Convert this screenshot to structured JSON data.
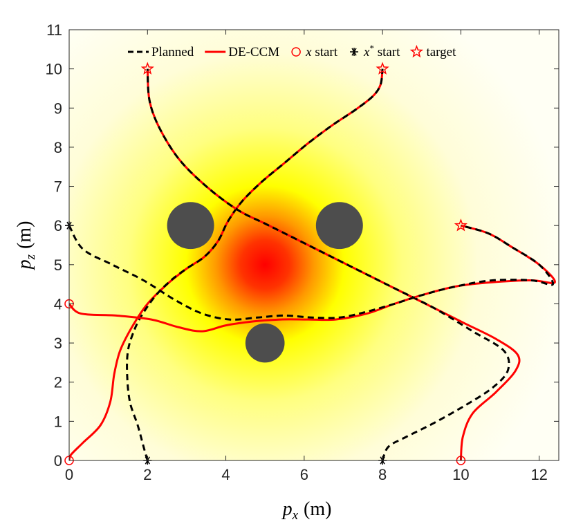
{
  "chart_data": {
    "type": "line",
    "xlabel": "p_x (m)",
    "ylabel": "p_z (m)",
    "xlabel_parts": {
      "var": "p",
      "sub": "x",
      "unit": "(m)"
    },
    "ylabel_parts": {
      "var": "p",
      "sub": "z",
      "unit": "(m)"
    },
    "xlim": [
      0,
      12.5
    ],
    "ylim": [
      0,
      11
    ],
    "xticks": [
      0,
      2,
      4,
      6,
      8,
      10,
      12
    ],
    "yticks": [
      0,
      1,
      2,
      3,
      4,
      5,
      6,
      7,
      8,
      9,
      10,
      11
    ],
    "grid": false,
    "legend_position": "top",
    "legend": [
      {
        "label": "Planned",
        "style": "dashed",
        "color": "#000000"
      },
      {
        "label": "DE-CCM",
        "style": "solid",
        "color": "#ff0000"
      },
      {
        "label": "x start",
        "marker": "circle",
        "color": "#ff0000"
      },
      {
        "label": "x* start",
        "marker": "asterisk",
        "color": "#000000"
      },
      {
        "label": "target",
        "marker": "star",
        "color": "#ff0000"
      }
    ],
    "disturbance_field": {
      "center": [
        5,
        5
      ],
      "colormap": "white-yellow-red"
    },
    "obstacles": [
      {
        "center": [
          3.1,
          6.0
        ],
        "radius": 0.6
      },
      {
        "center": [
          6.9,
          6.0
        ],
        "radius": 0.6
      },
      {
        "center": [
          5.0,
          3.0
        ],
        "radius": 0.5
      }
    ],
    "colors": {
      "planned": "#000000",
      "deccm": "#ff0000",
      "obstacle": "#4d4d4d"
    },
    "series": [
      {
        "planned": [
          [
            2,
            0
          ],
          [
            1.9,
            0.35
          ],
          [
            1.75,
            0.9
          ],
          [
            1.55,
            1.5
          ],
          [
            1.48,
            2.2
          ],
          [
            1.5,
            2.8
          ],
          [
            1.65,
            3.3
          ],
          [
            1.85,
            3.7
          ],
          [
            2.2,
            4.2
          ],
          [
            2.6,
            4.6
          ],
          [
            3.0,
            4.9
          ],
          [
            3.45,
            5.2
          ],
          [
            3.8,
            5.6
          ],
          [
            4.05,
            6.1
          ],
          [
            4.4,
            6.6
          ],
          [
            4.9,
            7.1
          ],
          [
            5.5,
            7.6
          ],
          [
            6.1,
            8.1
          ],
          [
            6.7,
            8.55
          ],
          [
            7.3,
            8.95
          ],
          [
            7.75,
            9.3
          ],
          [
            7.95,
            9.6
          ],
          [
            8,
            10
          ]
        ],
        "deccm": [
          [
            0,
            0
          ],
          [
            0.05,
            0.15
          ],
          [
            0.35,
            0.45
          ],
          [
            0.8,
            0.9
          ],
          [
            1.05,
            1.5
          ],
          [
            1.15,
            2.2
          ],
          [
            1.3,
            2.8
          ],
          [
            1.6,
            3.4
          ],
          [
            2.0,
            4.0
          ],
          [
            2.5,
            4.5
          ],
          [
            3.0,
            4.9
          ],
          [
            3.45,
            5.2
          ],
          [
            3.8,
            5.6
          ],
          [
            4.05,
            6.1
          ],
          [
            4.4,
            6.6
          ],
          [
            4.9,
            7.1
          ],
          [
            5.5,
            7.6
          ],
          [
            6.1,
            8.1
          ],
          [
            6.7,
            8.55
          ],
          [
            7.3,
            8.95
          ],
          [
            7.75,
            9.3
          ],
          [
            7.95,
            9.6
          ],
          [
            8,
            10
          ]
        ],
        "x_start": [
          0,
          0
        ],
        "xstar_start": [
          2,
          0
        ],
        "target": [
          8,
          10
        ]
      },
      {
        "planned": [
          [
            8,
            0
          ],
          [
            8.15,
            0.35
          ],
          [
            8.6,
            0.6
          ],
          [
            9.3,
            0.95
          ],
          [
            10.1,
            1.4
          ],
          [
            10.8,
            1.85
          ],
          [
            11.2,
            2.3
          ],
          [
            11.1,
            2.8
          ],
          [
            10.3,
            3.3
          ],
          [
            9.3,
            3.9
          ],
          [
            8.2,
            4.45
          ],
          [
            7.2,
            4.95
          ],
          [
            6.4,
            5.35
          ],
          [
            5.6,
            5.75
          ],
          [
            5.0,
            6.05
          ],
          [
            4.3,
            6.4
          ],
          [
            3.5,
            7.0
          ],
          [
            2.8,
            7.7
          ],
          [
            2.3,
            8.5
          ],
          [
            2.05,
            9.2
          ],
          [
            2,
            10
          ]
        ],
        "deccm": [
          [
            10,
            0
          ],
          [
            10.05,
            0.6
          ],
          [
            10.3,
            1.2
          ],
          [
            10.9,
            1.75
          ],
          [
            11.4,
            2.3
          ],
          [
            11.45,
            2.7
          ],
          [
            10.9,
            3.1
          ],
          [
            10.1,
            3.5
          ],
          [
            9.3,
            3.9
          ],
          [
            8.2,
            4.45
          ],
          [
            7.2,
            4.95
          ],
          [
            6.4,
            5.35
          ],
          [
            5.6,
            5.75
          ],
          [
            5.0,
            6.05
          ],
          [
            4.3,
            6.4
          ],
          [
            3.5,
            7.0
          ],
          [
            2.8,
            7.7
          ],
          [
            2.3,
            8.5
          ],
          [
            2.05,
            9.2
          ],
          [
            2,
            10
          ]
        ],
        "x_start": [
          10,
          0
        ],
        "xstar_start": [
          8,
          0
        ],
        "target": [
          2,
          10
        ]
      },
      {
        "planned": [
          [
            0,
            6
          ],
          [
            0.35,
            5.4
          ],
          [
            1.1,
            5.0
          ],
          [
            1.9,
            4.6
          ],
          [
            2.7,
            4.1
          ],
          [
            3.4,
            3.75
          ],
          [
            4.1,
            3.6
          ],
          [
            4.8,
            3.65
          ],
          [
            5.5,
            3.7
          ],
          [
            6.2,
            3.65
          ],
          [
            6.9,
            3.65
          ],
          [
            7.6,
            3.8
          ],
          [
            8.3,
            4.0
          ],
          [
            9.1,
            4.25
          ],
          [
            9.9,
            4.45
          ],
          [
            10.8,
            4.6
          ],
          [
            11.8,
            4.6
          ],
          [
            12.35,
            4.5
          ],
          [
            12.0,
            5.0
          ],
          [
            11.3,
            5.45
          ],
          [
            10.7,
            5.8
          ],
          [
            10,
            6
          ]
        ],
        "deccm": [
          [
            0,
            4
          ],
          [
            0.3,
            3.75
          ],
          [
            1.2,
            3.7
          ],
          [
            2.1,
            3.6
          ],
          [
            2.8,
            3.4
          ],
          [
            3.4,
            3.3
          ],
          [
            4.0,
            3.45
          ],
          [
            4.7,
            3.55
          ],
          [
            5.4,
            3.6
          ],
          [
            6.1,
            3.6
          ],
          [
            6.8,
            3.6
          ],
          [
            7.6,
            3.75
          ],
          [
            8.3,
            4.0
          ],
          [
            9.1,
            4.25
          ],
          [
            9.9,
            4.45
          ],
          [
            10.8,
            4.55
          ],
          [
            11.8,
            4.6
          ],
          [
            12.4,
            4.55
          ],
          [
            12.0,
            5.0
          ],
          [
            11.3,
            5.45
          ],
          [
            10.7,
            5.8
          ],
          [
            10,
            6
          ]
        ],
        "x_start": [
          0,
          4
        ],
        "xstar_start": [
          0,
          6
        ],
        "target": [
          10,
          6
        ]
      }
    ]
  }
}
